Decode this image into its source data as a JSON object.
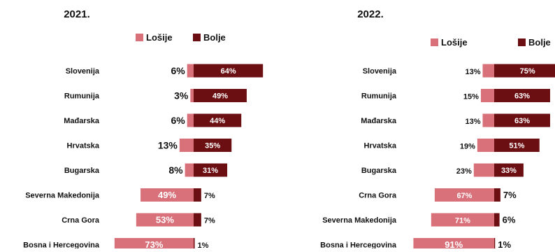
{
  "colors": {
    "worse": "#d9717a",
    "better": "#6b0f12"
  },
  "chart_data": [
    {
      "type": "bar",
      "title": "2021.",
      "legend": [
        "Lošije",
        "Bolje"
      ],
      "legend_position": "top-right",
      "categories": [
        "Slovenija",
        "Rumunija",
        "Mađarska",
        "Hrvatska",
        "Bugarska",
        "Severna Makedonija",
        "Crna Gora",
        "Bosna i Hercegovina"
      ],
      "series": [
        {
          "name": "Lošije",
          "values": [
            6,
            3,
            6,
            13,
            8,
            49,
            53,
            73
          ]
        },
        {
          "name": "Bolje",
          "values": [
            64,
            49,
            44,
            35,
            31,
            7,
            7,
            1
          ]
        }
      ]
    },
    {
      "type": "bar",
      "title": "2022.",
      "legend": [
        "Lošije",
        "Bolje"
      ],
      "legend_position": "top-right",
      "categories": [
        "Slovenija",
        "Rumunija",
        "Mađarska",
        "Hrvatska",
        "Bugarska",
        "Crna Gora",
        "Severna Makedonija",
        "Bosna i Hercegovina"
      ],
      "series": [
        {
          "name": "Lošije",
          "values": [
            13,
            15,
            13,
            19,
            23,
            67,
            71,
            91
          ]
        },
        {
          "name": "Bolje",
          "values": [
            75,
            63,
            63,
            51,
            33,
            7,
            6,
            1
          ]
        }
      ]
    }
  ]
}
